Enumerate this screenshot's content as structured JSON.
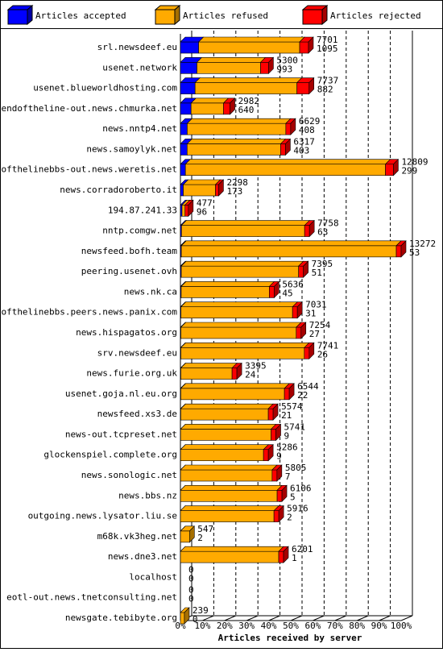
{
  "chart_data": {
    "type": "bar",
    "x_label": "Articles received by server",
    "categories": [
      "srl.newsdeef.eu",
      "usenet.network",
      "usenet.blueworldhosting.com",
      "endoftheline-out.news.chmurka.net",
      "news.nntp4.net",
      "news.samoylyk.net",
      "endofthelinebbs-out.news.weretis.net",
      "news.corradoroberto.it",
      "194.87.241.33",
      "nntp.comgw.net",
      "newsfeed.bofh.team",
      "peering.usenet.ovh",
      "news.nk.ca",
      "endofthelinebbs.peers.news.panix.com",
      "news.hispagatos.org",
      "srv.newsdeef.eu",
      "news.furie.org.uk",
      "usenet.goja.nl.eu.org",
      "newsfeed.xs3.de",
      "news-out.tcpreset.net",
      "glockenspiel.complete.org",
      "news.sonologic.net",
      "news.bbs.nz",
      "outgoing.news.lysator.liu.se",
      "m68k.vk3heg.net",
      "news.dne3.net",
      "localhost",
      "eotl-out.news.tnetconsulting.net",
      "newsgate.tebibyte.org"
    ],
    "totals": [
      7701,
      5300,
      7737,
      2982,
      6629,
      6317,
      12809,
      2298,
      477,
      7758,
      13272,
      7395,
      5636,
      7031,
      7254,
      7741,
      3395,
      6544,
      5574,
      5741,
      5286,
      5805,
      6106,
      5916,
      547,
      6201,
      0,
      0,
      239
    ],
    "series": [
      {
        "name": "Articles accepted",
        "color": "#0000ff",
        "values": [
          1095,
          993,
          882,
          640,
          408,
          403,
          299,
          173,
          96,
          63,
          53,
          51,
          45,
          31,
          27,
          26,
          24,
          22,
          21,
          9,
          9,
          7,
          5,
          2,
          2,
          1,
          0,
          0,
          0
        ]
      },
      {
        "name": "Articles refused",
        "color": "#ffaa00",
        "values": [
          6076,
          3827,
          6125,
          1952,
          5931,
          5624,
          12030,
          1935,
          181,
          7405,
          12929,
          7054,
          5301,
          6710,
          6937,
          7425,
          3081,
          6232,
          5263,
          5442,
          4987,
          5508,
          5811,
          5624,
          545,
          5910,
          0,
          0,
          239
        ]
      },
      {
        "name": "Articles rejected",
        "color": "#ff0000",
        "values": [
          530,
          480,
          730,
          390,
          290,
          290,
          480,
          190,
          200,
          290,
          290,
          290,
          290,
          290,
          290,
          290,
          290,
          290,
          290,
          290,
          290,
          290,
          290,
          290,
          0,
          290,
          0,
          0,
          0
        ]
      }
    ],
    "xlim": [
      0,
      13272
    ],
    "xticks": [
      {
        "value": 0,
        "label": "0%"
      },
      {
        "value": 1327.2,
        "label": "10%"
      },
      {
        "value": 2654.4,
        "label": "20%"
      },
      {
        "value": 3981.6,
        "label": "30%"
      },
      {
        "value": 5308.8,
        "label": "40%"
      },
      {
        "value": 6636,
        "label": "50%"
      },
      {
        "value": 7963.2,
        "label": "60%"
      },
      {
        "value": 9290.4,
        "label": "70%"
      },
      {
        "value": 10617.6,
        "label": "80%"
      },
      {
        "value": 11944.8,
        "label": "90%"
      },
      {
        "value": 13272,
        "label": "100%"
      }
    ],
    "grid": true
  }
}
